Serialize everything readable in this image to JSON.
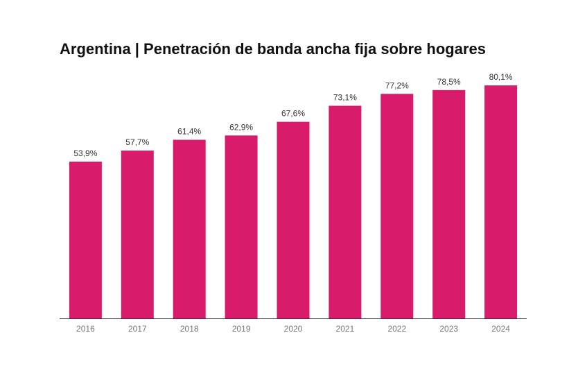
{
  "chart_data": {
    "type": "bar",
    "title": "Argentina | Penetración de banda ancha fija sobre hogares",
    "categories": [
      "2016",
      "2017",
      "2018",
      "2019",
      "2020",
      "2021",
      "2022",
      "2023",
      "2024"
    ],
    "values": [
      53.9,
      57.7,
      61.4,
      62.9,
      67.6,
      73.1,
      77.2,
      78.5,
      80.1
    ],
    "data_labels": [
      "53,9%",
      "57,7%",
      "61,4%",
      "62,9%",
      "67,6%",
      "73,1%",
      "77,2%",
      "78,5%",
      "80,1%"
    ],
    "xlabel": "",
    "ylabel": "",
    "ylim": [
      0,
      100
    ],
    "grid": false,
    "bar_color": "#D81B6A",
    "axis_color": "#333333"
  }
}
